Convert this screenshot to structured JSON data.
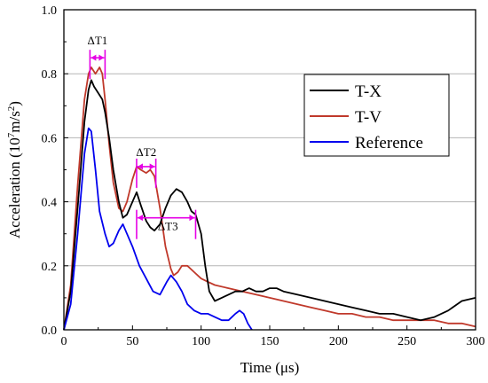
{
  "chart_data": {
    "type": "line",
    "xlabel": "Time (μs)",
    "ylabel_main": "Acceleration (10",
    "ylabel_sup": "7",
    "ylabel_mid": "m/s",
    "ylabel_sup2": "2",
    "ylabel_end": ")",
    "xlim": [
      0,
      300
    ],
    "ylim": [
      0,
      1.0
    ],
    "xticks": [
      0,
      50,
      100,
      150,
      200,
      250,
      300
    ],
    "yticks": [
      0.0,
      0.2,
      0.4,
      0.6,
      0.8,
      1.0
    ],
    "xtick_labels": [
      "0",
      "50",
      "100",
      "150",
      "200",
      "250",
      "300"
    ],
    "ytick_labels": [
      "0.0",
      "0.2",
      "0.4",
      "0.6",
      "0.8",
      "1.0"
    ],
    "grid": "horizontal",
    "legend_position": "top-right",
    "series": [
      {
        "name": "T-X",
        "color": "#000000",
        "x": [
          0,
          5,
          10,
          15,
          18,
          20,
          22,
          25,
          28,
          30,
          33,
          36,
          40,
          43,
          46,
          50,
          53,
          56,
          60,
          63,
          66,
          70,
          74,
          78,
          82,
          86,
          90,
          93,
          96,
          100,
          103,
          106,
          110,
          115,
          120,
          125,
          130,
          135,
          140,
          145,
          150,
          155,
          160,
          170,
          180,
          190,
          200,
          210,
          220,
          230,
          240,
          250,
          260,
          270,
          280,
          290,
          300
        ],
        "y": [
          0.0,
          0.12,
          0.38,
          0.65,
          0.75,
          0.78,
          0.76,
          0.74,
          0.72,
          0.68,
          0.6,
          0.5,
          0.4,
          0.35,
          0.36,
          0.4,
          0.43,
          0.39,
          0.34,
          0.32,
          0.31,
          0.33,
          0.38,
          0.42,
          0.44,
          0.43,
          0.4,
          0.37,
          0.36,
          0.3,
          0.2,
          0.12,
          0.09,
          0.1,
          0.11,
          0.12,
          0.12,
          0.13,
          0.12,
          0.12,
          0.13,
          0.13,
          0.12,
          0.11,
          0.1,
          0.09,
          0.08,
          0.07,
          0.06,
          0.05,
          0.05,
          0.04,
          0.03,
          0.04,
          0.06,
          0.09,
          0.1
        ]
      },
      {
        "name": "T-V",
        "color": "#c0392b",
        "x": [
          0,
          5,
          10,
          15,
          18,
          20,
          23,
          26,
          28,
          30,
          33,
          36,
          40,
          43,
          46,
          50,
          53,
          56,
          60,
          63,
          66,
          70,
          74,
          78,
          80,
          83,
          86,
          90,
          95,
          100,
          105,
          110,
          120,
          130,
          140,
          150,
          160,
          170,
          180,
          190,
          200,
          210,
          220,
          230,
          240,
          250,
          260,
          270,
          280,
          290,
          300
        ],
        "y": [
          0.0,
          0.14,
          0.45,
          0.72,
          0.8,
          0.82,
          0.8,
          0.82,
          0.8,
          0.72,
          0.58,
          0.46,
          0.38,
          0.37,
          0.4,
          0.47,
          0.51,
          0.5,
          0.49,
          0.5,
          0.48,
          0.38,
          0.26,
          0.19,
          0.17,
          0.18,
          0.2,
          0.2,
          0.18,
          0.16,
          0.15,
          0.14,
          0.13,
          0.12,
          0.11,
          0.1,
          0.09,
          0.08,
          0.07,
          0.06,
          0.05,
          0.05,
          0.04,
          0.04,
          0.03,
          0.03,
          0.03,
          0.03,
          0.02,
          0.02,
          0.01
        ]
      },
      {
        "name": "Reference",
        "color": "#0000ee",
        "x": [
          0,
          5,
          10,
          15,
          18,
          20,
          23,
          26,
          30,
          33,
          36,
          40,
          43,
          46,
          50,
          55,
          60,
          65,
          70,
          75,
          78,
          82,
          86,
          90,
          95,
          100,
          105,
          110,
          115,
          120,
          125,
          128,
          131,
          134,
          137
        ],
        "y": [
          0.0,
          0.08,
          0.3,
          0.55,
          0.63,
          0.62,
          0.5,
          0.37,
          0.3,
          0.26,
          0.27,
          0.31,
          0.33,
          0.3,
          0.26,
          0.2,
          0.16,
          0.12,
          0.11,
          0.15,
          0.17,
          0.15,
          0.12,
          0.08,
          0.06,
          0.05,
          0.05,
          0.04,
          0.03,
          0.03,
          0.05,
          0.06,
          0.05,
          0.02,
          0.0
        ]
      }
    ],
    "annotations": [
      {
        "label": "ΔT1",
        "x1": 19,
        "x2": 30,
        "y": 0.85
      },
      {
        "label": "ΔT2",
        "x1": 53,
        "x2": 67,
        "y": 0.51
      },
      {
        "label": "ΔT3",
        "x1": 53,
        "x2": 96,
        "y": 0.35
      }
    ],
    "annotation_color": "#e600e6"
  }
}
